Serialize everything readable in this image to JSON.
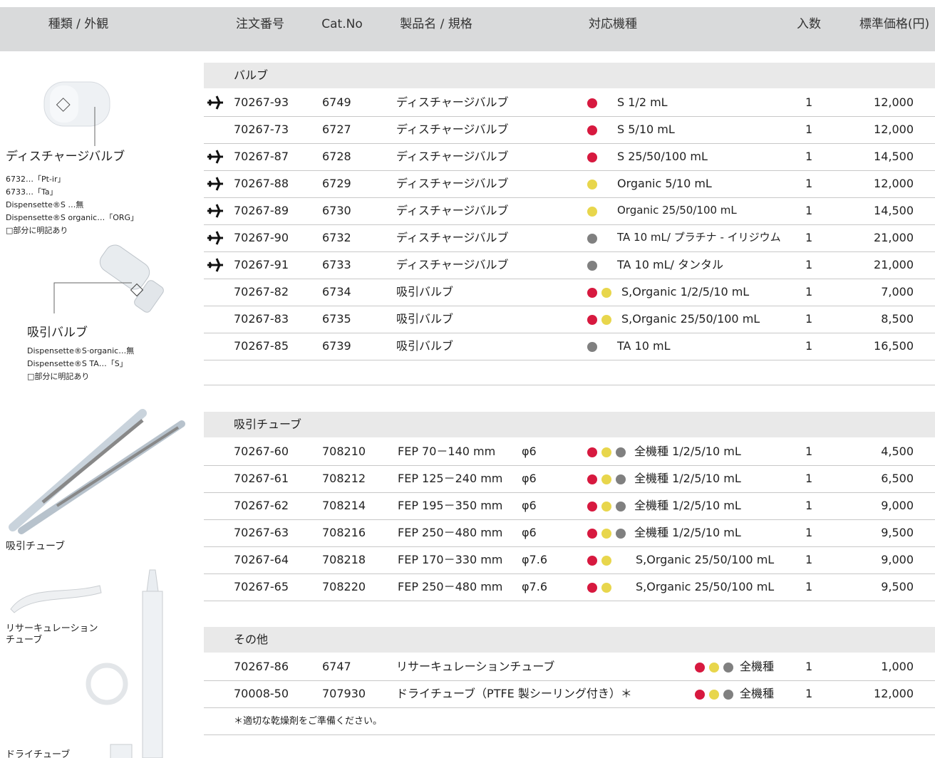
{
  "header": {
    "columns": [
      "種類 / 外観",
      "注文番号",
      "Cat.No",
      "製品名 / 規格",
      "対応機種",
      "入数",
      "標準価格(円)"
    ]
  },
  "sidebar": [
    {
      "title": "ディスチャージバルブ",
      "notes": [
        "6732…「Pt-ir」",
        "6733…「Ta」",
        "Dispensette®S …無",
        "Dispensette®S organic…「ORG」",
        "□部分に明記あり"
      ]
    },
    {
      "title": "吸引バルブ",
      "notes": [
        "Dispensette®S·organic…無",
        "Dispensette®S TA…「S」",
        "□部分に明記あり"
      ]
    },
    {
      "title": "吸引チューブ",
      "notes": []
    },
    {
      "title": "リサーキュレーション",
      "notes": [
        "チューブ"
      ]
    },
    {
      "title": "ドライチューブ",
      "notes": []
    }
  ],
  "sections": [
    {
      "title": "バルブ",
      "rows": [
        {
          "air": true,
          "order": "70267-93",
          "cat": "6749",
          "product": "ディスチャージバルブ",
          "models": [
            "#d7193f"
          ],
          "model_text": "S  1/2 mL",
          "qty": "1",
          "price": "12,000"
        },
        {
          "air": false,
          "order": "70267-73",
          "cat": "6727",
          "product": "ディスチャージバルブ",
          "models": [
            "#d7193f"
          ],
          "model_text": "S  5/10 mL",
          "qty": "1",
          "price": "12,000"
        },
        {
          "air": true,
          "order": "70267-87",
          "cat": "6728",
          "product": "ディスチャージバルブ",
          "models": [
            "#d7193f"
          ],
          "model_text": "S  25/50/100 mL",
          "qty": "1",
          "price": "14,500"
        },
        {
          "air": true,
          "order": "70267-88",
          "cat": "6729",
          "product": "ディスチャージバルブ",
          "models": [
            "#e8d64c"
          ],
          "model_text": "Organic  5/10 mL",
          "qty": "1",
          "price": "12,000"
        },
        {
          "air": true,
          "order": "70267-89",
          "cat": "6730",
          "product": "ディスチャージバルブ",
          "models": [
            "#e8d64c"
          ],
          "model_text": "Organic  25/50/100 mL",
          "qty": "1",
          "price": "14,500"
        },
        {
          "air": true,
          "order": "70267-90",
          "cat": "6732",
          "product": "ディスチャージバルブ",
          "models": [
            "#808080"
          ],
          "model_text": "TA  10 mL/ プラチナ - イリジウム",
          "qty": "1",
          "price": "21,000"
        },
        {
          "air": true,
          "order": "70267-91",
          "cat": "6733",
          "product": "ディスチャージバルブ",
          "models": [
            "#808080"
          ],
          "model_text": "TA  10 mL/ タンタル",
          "qty": "1",
          "price": "21,000"
        },
        {
          "air": false,
          "order": "70267-82",
          "cat": "6734",
          "product": "吸引バルブ",
          "models": [
            "#d7193f",
            "#e8d64c"
          ],
          "model_text": "S,Organic  1/2/5/10 mL",
          "qty": "1",
          "price": "7,000"
        },
        {
          "air": false,
          "order": "70267-83",
          "cat": "6735",
          "product": "吸引バルブ",
          "models": [
            "#d7193f",
            "#e8d64c"
          ],
          "model_text": "S,Organic 25/50/100 mL",
          "qty": "1",
          "price": "8,500"
        },
        {
          "air": false,
          "order": "70267-85",
          "cat": "6739",
          "product": "吸引バルブ",
          "models": [
            "#808080"
          ],
          "model_text": "TA  10 mL",
          "qty": "1",
          "price": "16,500"
        }
      ]
    },
    {
      "title": "吸引チューブ",
      "rows": [
        {
          "air": false,
          "order": "70267-60",
          "cat": "708210",
          "product": "FEP 70－140 mm",
          "spec": "φ6",
          "models": [
            "#d7193f",
            "#e8d64c",
            "#808080"
          ],
          "model_text": "全機種 1/2/5/10 mL",
          "qty": "1",
          "price": "4,500"
        },
        {
          "air": false,
          "order": "70267-61",
          "cat": "708212",
          "product": "FEP 125－240 mm",
          "spec": "φ6",
          "models": [
            "#d7193f",
            "#e8d64c",
            "#808080"
          ],
          "model_text": "全機種 1/2/5/10 mL",
          "qty": "1",
          "price": "6,500"
        },
        {
          "air": false,
          "order": "70267-62",
          "cat": "708214",
          "product": "FEP 195－350 mm",
          "spec": "φ6",
          "models": [
            "#d7193f",
            "#e8d64c",
            "#808080"
          ],
          "model_text": "全機種 1/2/5/10 mL",
          "qty": "1",
          "price": "9,000"
        },
        {
          "air": false,
          "order": "70267-63",
          "cat": "708216",
          "product": "FEP 250－480 mm",
          "spec": "φ6",
          "models": [
            "#d7193f",
            "#e8d64c",
            "#808080"
          ],
          "model_text": "全機種 1/2/5/10 mL",
          "qty": "1",
          "price": "9,500"
        },
        {
          "air": false,
          "order": "70267-64",
          "cat": "708218",
          "product": "FEP 170－330 mm",
          "spec": "φ7.6",
          "models": [
            "#d7193f",
            "#e8d64c"
          ],
          "model_text": "S,Organic 25/50/100 mL",
          "qty": "1",
          "price": "9,000"
        },
        {
          "air": false,
          "order": "70267-65",
          "cat": "708220",
          "product": "FEP 250－480 mm",
          "spec": "φ7.6",
          "models": [
            "#d7193f",
            "#e8d64c"
          ],
          "model_text": "S,Organic 25/50/100 mL",
          "qty": "1",
          "price": "9,500"
        }
      ]
    },
    {
      "title": "その他",
      "note": "＊適切な乾燥剤をご準備ください。",
      "rows": [
        {
          "air": false,
          "order": "70267-86",
          "cat": "6747",
          "product": "リサーキュレーションチューブ",
          "models": [
            "#d7193f",
            "#e8d64c",
            "#808080"
          ],
          "model_text": "全機種",
          "qty": "1",
          "price": "1,000"
        },
        {
          "air": false,
          "order": "70008-50",
          "cat": "707930",
          "product": "ドライチューブ（PTFE 製シーリング付き）＊",
          "models": [
            "#d7193f",
            "#e8d64c",
            "#808080"
          ],
          "model_text": "全機種",
          "qty": "1",
          "price": "12,000"
        }
      ]
    }
  ]
}
